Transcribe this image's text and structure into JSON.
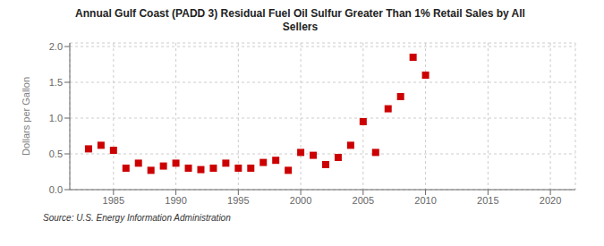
{
  "chart_data": {
    "type": "scatter",
    "title": "Annual Gulf Coast (PADD 3) Residual Fuel Oil Sulfur Greater Than 1% Retail Sales by All\nSellers",
    "ylabel": "Dollars per Gallon",
    "annotations": [
      "Source: U.S. Energy Information Administration"
    ],
    "x": [
      1983,
      1984,
      1985,
      1986,
      1987,
      1988,
      1989,
      1990,
      1991,
      1992,
      1993,
      1994,
      1995,
      1996,
      1997,
      1998,
      1999,
      2000,
      2001,
      2002,
      2003,
      2004,
      2005,
      2006,
      2007,
      2008,
      2009,
      2010
    ],
    "values": [
      0.57,
      0.62,
      0.55,
      0.3,
      0.37,
      0.27,
      0.33,
      0.37,
      0.3,
      0.28,
      0.3,
      0.37,
      0.3,
      0.3,
      0.38,
      0.41,
      0.27,
      0.52,
      0.48,
      0.35,
      0.45,
      0.62,
      0.95,
      0.52,
      1.13,
      1.3,
      1.85,
      1.6
    ],
    "color": "#cc0000",
    "marker": "square",
    "xlim": [
      1981.5,
      2022
    ],
    "ylim": [
      0.0,
      2.05
    ],
    "xticks": [
      1985,
      1990,
      1995,
      2000,
      2005,
      2010,
      2015,
      2020
    ],
    "yticks": [
      {
        "value": 0.0,
        "label": "0.0"
      },
      0.5,
      {
        "value": 1.0,
        "label": "1.0"
      },
      1.5,
      {
        "value": 2.0,
        "label": "2.0"
      }
    ],
    "grid": true
  }
}
